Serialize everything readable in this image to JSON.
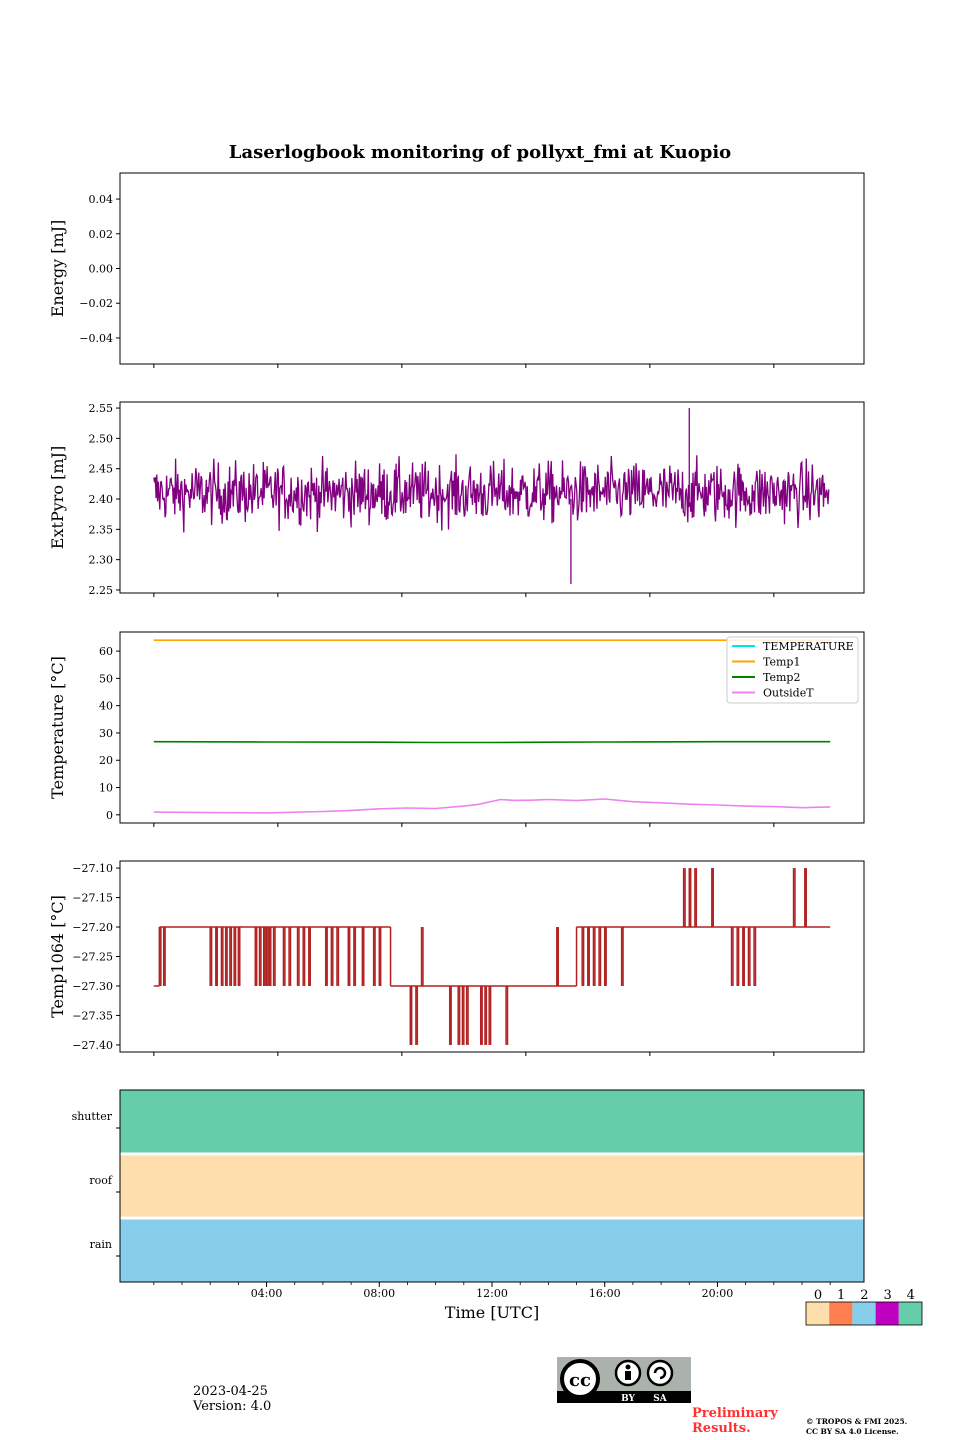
{
  "title": "Laserlogbook monitoring of pollyxt_fmi at Kuopio",
  "date": "2023-04-25",
  "version": "Version: 4.0",
  "preliminary": "Preliminary Results.",
  "copyright_line1": "© TROPOS & FMI 2025.",
  "copyright_line2": "CC BY SA 4.0 License.",
  "license_badge": {
    "by": "BY",
    "sa": "SA",
    "cc": "cc"
  },
  "colors": {
    "extpyro": "#800080",
    "temperature": "#00e5e5",
    "temp1": "#ffa500",
    "temp2": "#008000",
    "outsideT": "#ee82ee",
    "temp1064": "#b22222",
    "status": [
      "#fddeac",
      "#ff7f50",
      "#87ceeb",
      "#c000c0",
      "#66cdaa"
    ]
  },
  "chart_data": [
    {
      "id": "energy",
      "type": "line",
      "ylabel": "Energy [mJ]",
      "ylim": [
        -0.055,
        0.055
      ],
      "yticks": [
        0.04,
        0.02,
        0.0,
        -0.02,
        -0.04
      ],
      "ytick_labels": [
        "0.04",
        "0.02",
        "0.00",
        "−0.02",
        "−0.04"
      ],
      "series": []
    },
    {
      "id": "extpyro",
      "type": "line",
      "ylabel": "ExtPyro [mJ]",
      "ylim": [
        2.245,
        2.56
      ],
      "yticks": [
        2.25,
        2.3,
        2.35,
        2.4,
        2.45,
        2.5,
        2.55
      ],
      "ytick_labels": [
        "2.25",
        "2.30",
        "2.35",
        "2.40",
        "2.45",
        "2.50",
        "2.55"
      ],
      "series": [
        {
          "name": "ExtPyro",
          "mean": 2.41,
          "spread": 0.035,
          "min": 2.26,
          "max": 2.55,
          "x_range": [
            0.0,
            23.95
          ]
        }
      ]
    },
    {
      "id": "temperature",
      "type": "line",
      "ylabel": "Temperature [°C]",
      "ylim": [
        -3,
        67
      ],
      "yticks": [
        0,
        10,
        20,
        30,
        40,
        50,
        60
      ],
      "ytick_labels": [
        "0",
        "10",
        "20",
        "30",
        "40",
        "50",
        "60"
      ],
      "legend": [
        "TEMPERATURE",
        "Temp1",
        "Temp2",
        "OutsideT"
      ],
      "series": [
        {
          "name": "TEMPERATURE",
          "x": [],
          "y": []
        },
        {
          "name": "Temp1",
          "x": [
            0,
            24
          ],
          "y": [
            64,
            64
          ]
        },
        {
          "name": "Temp2",
          "x": [
            0,
            4,
            8,
            10,
            12,
            14,
            16,
            20,
            24
          ],
          "y": [
            26.8,
            26.7,
            26.6,
            26.5,
            26.5,
            26.6,
            26.7,
            26.8,
            26.8
          ]
        },
        {
          "name": "OutsideT",
          "x": [
            0,
            2,
            4,
            6,
            7,
            8,
            9,
            10,
            11,
            11.5,
            12.3,
            12.8,
            13.5,
            14,
            15,
            16,
            17,
            18,
            19,
            20,
            21,
            22,
            23,
            24
          ],
          "y": [
            1,
            0.8,
            0.7,
            1.2,
            1.6,
            2.2,
            2.5,
            2.3,
            3.2,
            3.8,
            5.6,
            5.3,
            5.4,
            5.6,
            5.2,
            5.8,
            4.8,
            4.4,
            3.9,
            3.6,
            3.2,
            3.0,
            2.6,
            2.9
          ]
        }
      ]
    },
    {
      "id": "temp1064",
      "type": "line",
      "ylabel": "Temp1064 [°C]",
      "ylim": [
        -27.412,
        -27.088
      ],
      "yticks": [
        -27.1,
        -27.15,
        -27.2,
        -27.25,
        -27.3,
        -27.35,
        -27.4
      ],
      "ytick_labels": [
        "−27.10",
        "−27.15",
        "−27.20",
        "−27.25",
        "−27.30",
        "−27.35",
        "−27.40"
      ],
      "series": [
        {
          "name": "Temp1064",
          "base_levels": [
            {
              "from": 0.0,
              "to": 0.2,
              "value": -27.3
            },
            {
              "from": 0.2,
              "to": 8.4,
              "value": -27.2
            },
            {
              "from": 8.4,
              "to": 15.0,
              "value": -27.3
            },
            {
              "from": 15.0,
              "to": 24.0,
              "value": -27.2
            }
          ],
          "spikes": [
            {
              "x": 0.2,
              "value": -27.2
            },
            {
              "x": 0.35,
              "value": -27.3
            },
            {
              "x": 0.5,
              "value": -27.2
            },
            {
              "x": 2.0,
              "value": -27.3
            },
            {
              "x": 2.2,
              "value": -27.3
            },
            {
              "x": 2.4,
              "value": -27.3
            },
            {
              "x": 2.55,
              "value": -27.3
            },
            {
              "x": 2.7,
              "value": -27.3
            },
            {
              "x": 2.85,
              "value": -27.3
            },
            {
              "x": 3.0,
              "value": -27.3
            },
            {
              "x": 3.6,
              "value": -27.3
            },
            {
              "x": 3.75,
              "value": -27.3
            },
            {
              "x": 3.9,
              "value": -27.3
            },
            {
              "x": 4.0,
              "value": -27.3
            },
            {
              "x": 4.1,
              "value": -27.3
            },
            {
              "x": 4.25,
              "value": -27.3
            },
            {
              "x": 4.6,
              "value": -27.3
            },
            {
              "x": 4.8,
              "value": -27.3
            },
            {
              "x": 5.1,
              "value": -27.3
            },
            {
              "x": 5.3,
              "value": -27.3
            },
            {
              "x": 5.5,
              "value": -27.3
            },
            {
              "x": 6.1,
              "value": -27.3
            },
            {
              "x": 6.3,
              "value": -27.3
            },
            {
              "x": 6.5,
              "value": -27.3
            },
            {
              "x": 6.9,
              "value": -27.3
            },
            {
              "x": 7.1,
              "value": -27.3
            },
            {
              "x": 7.4,
              "value": -27.3
            },
            {
              "x": 7.8,
              "value": -27.3
            },
            {
              "x": 8.0,
              "value": -27.3
            },
            {
              "x": 9.1,
              "value": -27.4
            },
            {
              "x": 9.3,
              "value": -27.4
            },
            {
              "x": 9.5,
              "value": -27.2
            },
            {
              "x": 10.5,
              "value": -27.4
            },
            {
              "x": 10.8,
              "value": -27.4
            },
            {
              "x": 10.95,
              "value": -27.4
            },
            {
              "x": 11.1,
              "value": -27.4
            },
            {
              "x": 11.6,
              "value": -27.4
            },
            {
              "x": 11.75,
              "value": -27.4
            },
            {
              "x": 11.9,
              "value": -27.4
            },
            {
              "x": 12.5,
              "value": -27.4
            },
            {
              "x": 14.3,
              "value": -27.2
            },
            {
              "x": 15.2,
              "value": -27.3
            },
            {
              "x": 15.4,
              "value": -27.3
            },
            {
              "x": 15.6,
              "value": -27.3
            },
            {
              "x": 15.8,
              "value": -27.3
            },
            {
              "x": 16.0,
              "value": -27.3
            },
            {
              "x": 16.6,
              "value": -27.3
            },
            {
              "x": 18.8,
              "value": -27.1
            },
            {
              "x": 19.0,
              "value": -27.1
            },
            {
              "x": 19.2,
              "value": -27.1
            },
            {
              "x": 19.8,
              "value": -27.1
            },
            {
              "x": 20.5,
              "value": -27.3
            },
            {
              "x": 20.7,
              "value": -27.3
            },
            {
              "x": 20.9,
              "value": -27.3
            },
            {
              "x": 21.1,
              "value": -27.3
            },
            {
              "x": 21.3,
              "value": -27.3
            },
            {
              "x": 22.7,
              "value": -27.1
            },
            {
              "x": 23.1,
              "value": -27.1
            }
          ]
        }
      ]
    },
    {
      "id": "status",
      "type": "heatmap",
      "rows": [
        "shutter",
        "roof",
        "rain"
      ],
      "row_values": [
        4,
        0,
        2
      ],
      "xlabel": "Time [UTC]",
      "xlim": [
        -1.2,
        25.2
      ],
      "xticks": [
        4,
        8,
        12,
        16,
        20
      ],
      "xtick_labels": [
        "04:00",
        "08:00",
        "12:00",
        "16:00",
        "20:00"
      ],
      "colorbar_ticks": [
        "0",
        "1",
        "2",
        "3",
        "4"
      ]
    }
  ]
}
